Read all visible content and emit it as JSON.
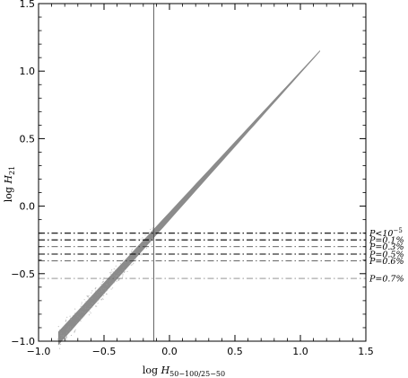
{
  "chart_data": {
    "type": "scatter",
    "xlabel": {
      "prefix": "log ",
      "main": "H",
      "sub": "50−100/25−50"
    },
    "ylabel": {
      "prefix": "log ",
      "main": "H",
      "sub": "21"
    },
    "xlim": [
      -1.0,
      1.5
    ],
    "ylim": [
      -1.0,
      1.5
    ],
    "xticks": [
      "−1.0",
      "−0.5",
      "0.0",
      "0.5",
      "1.0",
      "1.5"
    ],
    "yticks": [
      "−1.0",
      "−0.5",
      "0.0",
      "0.5",
      "1.0",
      "1.5"
    ],
    "xtick_values": [
      -1.0,
      -0.5,
      0.0,
      0.5,
      1.0,
      1.5
    ],
    "ytick_values": [
      -1.0,
      -0.5,
      0.0,
      0.5,
      1.0,
      1.5
    ],
    "vertical_line_x": -0.12,
    "scatter_band": {
      "x_start": -0.85,
      "x_end": 1.15,
      "y_at_start": -0.98,
      "y_at_end": 1.15
    },
    "threshold_lines": [
      {
        "y": -0.2,
        "label": "P<10",
        "sup": "−5",
        "style": "dashdot-bold"
      },
      {
        "y": -0.25,
        "label": "P=0.1%",
        "style": "dashdot-bold"
      },
      {
        "y": -0.3,
        "label": "P=0.3%",
        "style": "dashdot"
      },
      {
        "y": -0.355,
        "label": "P=0.5%",
        "style": "dashdot-bold"
      },
      {
        "y": -0.405,
        "label": "P=0.6%",
        "style": "dashdot"
      },
      {
        "y": -0.535,
        "label": "P=0.7%",
        "style": "dashdot-light"
      }
    ],
    "grid": false
  }
}
